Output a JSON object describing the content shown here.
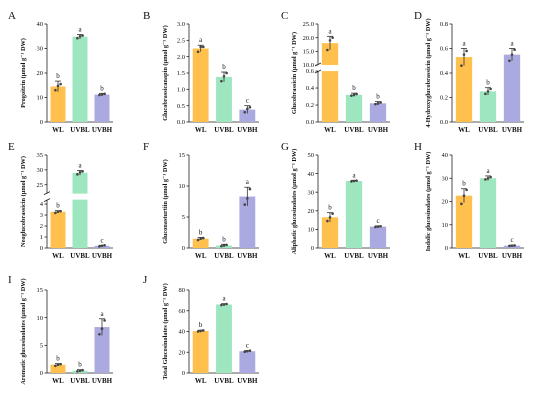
{
  "figure": {
    "background": "#ffffff"
  },
  "colors": {
    "WL": "#ffc04d",
    "UVBL": "#9ee6bf",
    "UVBH": "#aaaae0",
    "errorbar": "#333333",
    "dot": "#444444"
  },
  "chart_data": [
    {
      "letter": "A",
      "type": "bar",
      "ylabel": "Progoitrin (µmol g⁻¹ DW)",
      "categories": [
        "WL",
        "UVBL",
        "UVBH"
      ],
      "values": [
        14.5,
        34.8,
        11.2
      ],
      "errors": [
        2.2,
        0.9,
        0.5
      ],
      "letters": [
        "b",
        "a",
        "b"
      ],
      "ylim": [
        0,
        40
      ],
      "yticks": [
        0,
        10,
        20,
        30,
        40
      ],
      "points": [
        [
          13.0,
          14.8,
          15.5
        ],
        [
          34.2,
          35.0,
          35.3
        ],
        [
          11.0,
          11.2,
          11.5
        ]
      ]
    },
    {
      "letter": "B",
      "type": "bar",
      "ylabel": "Glucobrassicanapin (µmol g⁻¹ DW)",
      "categories": [
        "WL",
        "UVBL",
        "UVBH"
      ],
      "values": [
        2.25,
        1.38,
        0.38
      ],
      "errors": [
        0.1,
        0.15,
        0.12
      ],
      "letters": [
        "a",
        "b",
        "c"
      ],
      "ylim": [
        0,
        3.0
      ],
      "yticks": [
        0.0,
        0.5,
        1.0,
        1.5,
        2.0,
        2.5,
        3.0
      ],
      "points": [
        [
          2.15,
          2.3,
          2.3
        ],
        [
          1.25,
          1.4,
          1.5
        ],
        [
          0.3,
          0.4,
          0.45
        ]
      ]
    },
    {
      "letter": "C",
      "type": "bar",
      "ylabel": "Glucobrassicin (µmol g⁻¹ DW)",
      "categories": [
        "WL",
        "UVBL",
        "UVBH"
      ],
      "values": [
        18.0,
        0.32,
        0.22
      ],
      "errors": [
        2.5,
        0.02,
        0.02
      ],
      "letters": [
        "a",
        "b",
        "b"
      ],
      "ylim": [
        0,
        25
      ],
      "yticks": [
        0.0,
        0.2,
        0.4,
        0.6,
        10,
        15,
        20,
        25
      ],
      "broken_axis": {
        "lower": [
          0,
          0.6
        ],
        "upper": [
          10,
          25
        ]
      },
      "points": [
        [
          15.5,
          19.0,
          20.0
        ],
        [
          0.31,
          0.32,
          0.33
        ],
        [
          0.21,
          0.22,
          0.23
        ]
      ]
    },
    {
      "letter": "D",
      "type": "bar",
      "ylabel": "4-Hydroxyglucobrassicin (µmol g⁻¹ DW)",
      "categories": [
        "WL",
        "UVBL",
        "UVBH"
      ],
      "values": [
        0.53,
        0.25,
        0.55
      ],
      "errors": [
        0.07,
        0.03,
        0.05
      ],
      "letters": [
        "a",
        "b",
        "a"
      ],
      "ylim": [
        0,
        0.8
      ],
      "yticks": [
        0.0,
        0.2,
        0.4,
        0.6,
        0.8
      ],
      "points": [
        [
          0.46,
          0.55,
          0.58
        ],
        [
          0.23,
          0.25,
          0.27
        ],
        [
          0.5,
          0.55,
          0.59
        ]
      ]
    },
    {
      "letter": "E",
      "type": "bar",
      "ylabel": "Neoglucobrassicin (µmol g⁻¹ DW)",
      "categories": [
        "WL",
        "UVBL",
        "UVBH"
      ],
      "values": [
        3.3,
        29.0,
        0.2
      ],
      "errors": [
        0.1,
        0.8,
        0.05
      ],
      "letters": [
        "b",
        "a",
        "c"
      ],
      "ylim": [
        0,
        35
      ],
      "yticks": [
        0,
        1,
        2,
        3,
        4,
        25,
        30,
        35
      ],
      "broken_axis": {
        "lower": [
          0,
          4.4
        ],
        "upper": [
          22,
          35
        ]
      },
      "points": [
        [
          3.2,
          3.3,
          3.35
        ],
        [
          28.5,
          29.2,
          29.5
        ],
        [
          0.15,
          0.2,
          0.25
        ]
      ]
    },
    {
      "letter": "F",
      "type": "bar",
      "ylabel": "Gluconasturtiin (µmol g⁻¹ DW)",
      "categories": [
        "WL",
        "UVBL",
        "UVBH"
      ],
      "values": [
        1.5,
        0.4,
        8.3
      ],
      "errors": [
        0.2,
        0.2,
        1.5
      ],
      "letters": [
        "b",
        "b",
        "a"
      ],
      "ylim": [
        0,
        15
      ],
      "yticks": [
        0,
        5,
        10,
        15
      ],
      "points": [
        [
          1.3,
          1.5,
          1.6
        ],
        [
          0.3,
          0.4,
          0.5
        ],
        [
          7.0,
          8.0,
          9.5
        ]
      ]
    },
    {
      "letter": "G",
      "type": "bar",
      "ylabel": "Aliphatic glucosinolates (µmol g⁻¹ DW)",
      "categories": [
        "WL",
        "UVBL",
        "UVBH"
      ],
      "values": [
        16.5,
        36.0,
        11.5
      ],
      "errors": [
        2.5,
        0.4,
        0.4
      ],
      "letters": [
        "b",
        "a",
        "c"
      ],
      "ylim": [
        0,
        50
      ],
      "yticks": [
        0,
        10,
        20,
        30,
        40,
        50
      ],
      "points": [
        [
          14.5,
          16.5,
          18.5
        ],
        [
          35.8,
          36.0,
          36.2
        ],
        [
          11.3,
          11.5,
          11.7
        ]
      ]
    },
    {
      "letter": "H",
      "type": "bar",
      "ylabel": "Indolic glucosinolates (µmol g⁻¹ DW)",
      "categories": [
        "WL",
        "UVBL",
        "UVBH"
      ],
      "values": [
        22.5,
        30.0,
        1.0
      ],
      "errors": [
        3.0,
        1.0,
        0.2
      ],
      "letters": [
        "b",
        "a",
        "c"
      ],
      "ylim": [
        0,
        40
      ],
      "yticks": [
        0,
        10,
        20,
        30,
        40
      ],
      "points": [
        [
          19.0,
          22.5,
          25.0
        ],
        [
          29.5,
          30.0,
          30.5
        ],
        [
          0.9,
          1.0,
          1.1
        ]
      ]
    },
    {
      "letter": "I",
      "type": "bar",
      "ylabel": "Aromatic glucosinolates (µmol g⁻¹ DW)",
      "categories": [
        "WL",
        "UVBL",
        "UVBH"
      ],
      "values": [
        1.5,
        0.4,
        8.3
      ],
      "errors": [
        0.2,
        0.2,
        1.5
      ],
      "letters": [
        "b",
        "b",
        "a"
      ],
      "ylim": [
        0,
        15
      ],
      "yticks": [
        0,
        5,
        10,
        15
      ],
      "points": [
        [
          1.3,
          1.5,
          1.6
        ],
        [
          0.3,
          0.4,
          0.5
        ],
        [
          7.0,
          8.0,
          9.5
        ]
      ]
    },
    {
      "letter": "J",
      "type": "bar",
      "ylabel": "Total Glucosinolates (µmol g⁻¹ DW)",
      "categories": [
        "WL",
        "UVBL",
        "UVBH"
      ],
      "values": [
        40.5,
        66.0,
        21.0
      ],
      "errors": [
        0.8,
        0.8,
        0.6
      ],
      "letters": [
        "b",
        "a",
        "c"
      ],
      "ylim": [
        0,
        80
      ],
      "yticks": [
        0,
        20,
        40,
        60,
        80
      ],
      "points": [
        [
          40.0,
          40.5,
          41.0
        ],
        [
          65.5,
          66.0,
          66.5
        ],
        [
          20.5,
          21.0,
          21.5
        ]
      ]
    }
  ]
}
